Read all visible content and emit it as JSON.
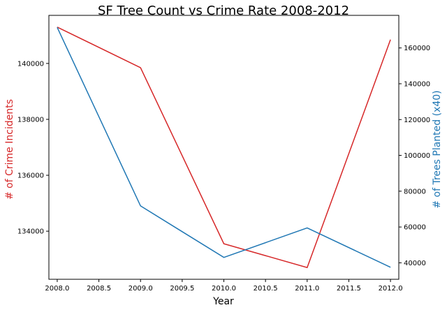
{
  "chart_data": {
    "type": "line",
    "title": "SF Tree Count vs Crime Rate 2008-2012",
    "xlabel": "Year",
    "x": [
      2008,
      2009,
      2010,
      2011,
      2012
    ],
    "xlim": [
      2007.9,
      2012.1
    ],
    "xticks": [
      "2008.0",
      "2008.5",
      "2009.0",
      "2009.5",
      "2010.0",
      "2010.5",
      "2011.0",
      "2011.5",
      "2012.0"
    ],
    "xtick_values": [
      2008.0,
      2008.5,
      2009.0,
      2009.5,
      2010.0,
      2010.5,
      2011.0,
      2011.5,
      2012.0
    ],
    "series": [
      {
        "axis": "left",
        "color": "#d62728",
        "values": [
          141300,
          139850,
          133550,
          132700,
          140850
        ]
      },
      {
        "axis": "right",
        "color": "#1f77b4",
        "values": [
          171500,
          71800,
          43000,
          59500,
          37500
        ]
      }
    ],
    "y_left": {
      "label": "# of Crime Incidents",
      "color": "#d62728",
      "ylim": [
        132280,
        141720
      ],
      "ticks": [
        "134000",
        "136000",
        "138000",
        "140000"
      ],
      "tick_values": [
        134000,
        136000,
        138000,
        140000
      ]
    },
    "y_right": {
      "label": "# of Trees Planted (x40)",
      "color": "#1f77b4",
      "ylim": [
        30800,
        178200
      ],
      "ticks": [
        "40000",
        "60000",
        "80000",
        "100000",
        "120000",
        "140000",
        "160000"
      ],
      "tick_values": [
        40000,
        60000,
        80000,
        100000,
        120000,
        140000,
        160000
      ]
    },
    "grid": false,
    "legend": "none"
  }
}
